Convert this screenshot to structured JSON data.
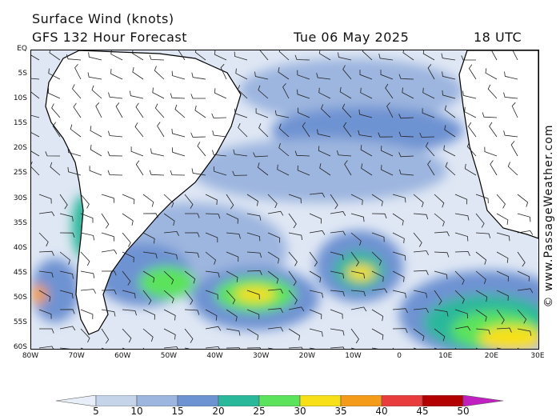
{
  "header": {
    "title": "Surface Wind (knots)",
    "model": "GFS 132 Hour Forecast",
    "date": "Tue 06 May 2025",
    "time": "18 UTC"
  },
  "credit": "© www.PassageWeather.com",
  "lat_labels": [
    "EQ",
    "5S",
    "10S",
    "15S",
    "20S",
    "25S",
    "30S",
    "35S",
    "40S",
    "45S",
    "50S",
    "55S",
    "60S"
  ],
  "lon_labels": [
    "80W",
    "70W",
    "60W",
    "50W",
    "40W",
    "30W",
    "20W",
    "10W",
    "0",
    "10E",
    "20E",
    "30E"
  ],
  "legend": {
    "labels": [
      "5",
      "10",
      "15",
      "20",
      "25",
      "30",
      "35",
      "40",
      "45",
      "50"
    ],
    "colors": [
      "#e8eef8",
      "#c6d4ea",
      "#9db6df",
      "#6e93d2",
      "#2ab89b",
      "#5ce35c",
      "#f7e017",
      "#f49b1a",
      "#e83c3c",
      "#b30000",
      "#c020c0"
    ]
  }
}
